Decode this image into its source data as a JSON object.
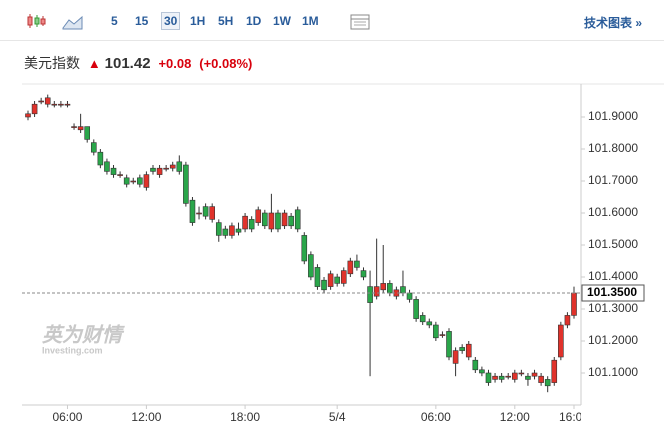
{
  "toolbar": {
    "intervals": [
      "5",
      "15",
      "30",
      "1H",
      "5H",
      "1D",
      "1W",
      "1M"
    ],
    "selected": "30",
    "link": "技术图表 »"
  },
  "header": {
    "name": "美元指数",
    "price": "101.42",
    "change": "+0.08",
    "change_pct": "(+0.08%)"
  },
  "watermark": {
    "brand": "英为财情",
    "site": "Investing.com"
  },
  "chart_data": {
    "type": "candlestick",
    "up_color": "#e0322b",
    "down_color": "#2aa64a",
    "categories": [
      null,
      null,
      null,
      null,
      null,
      null,
      "06:00",
      null,
      null,
      null,
      null,
      null,
      null,
      null,
      null,
      null,
      null,
      null,
      "12:00",
      null,
      null,
      null,
      null,
      null,
      null,
      null,
      null,
      null,
      null,
      null,
      null,
      null,
      null,
      "18:00",
      null,
      null,
      null,
      null,
      null,
      null,
      null,
      null,
      null,
      null,
      null,
      null,
      null,
      "5/4",
      null,
      null,
      null,
      null,
      null,
      null,
      null,
      null,
      null,
      null,
      null,
      null,
      null,
      null,
      "06:00",
      null,
      null,
      null,
      null,
      null,
      null,
      null,
      null,
      null,
      null,
      null,
      "12:00",
      null,
      null,
      null,
      null,
      null,
      null,
      null,
      null,
      "16:00"
    ],
    "open": [
      101.9,
      101.91,
      101.95,
      101.94,
      101.94,
      101.94,
      101.94,
      101.87,
      101.86,
      101.87,
      101.82,
      101.79,
      101.76,
      101.74,
      101.72,
      101.71,
      101.7,
      101.71,
      101.68,
      101.74,
      101.72,
      101.74,
      101.74,
      101.76,
      101.75,
      101.64,
      101.6,
      101.62,
      101.58,
      101.57,
      101.55,
      101.53,
      101.55,
      101.55,
      101.58,
      101.57,
      101.6,
      101.55,
      101.6,
      101.56,
      101.59,
      101.61,
      101.53,
      101.47,
      101.43,
      101.39,
      101.37,
      101.4,
      101.38,
      101.41,
      101.45,
      101.42,
      101.37,
      101.34,
      101.36,
      101.38,
      101.34,
      101.37,
      101.35,
      101.33,
      101.28,
      101.26,
      101.25,
      101.22,
      101.23,
      101.13,
      101.18,
      101.15,
      101.14,
      101.11,
      101.1,
      101.08,
      101.09,
      101.09,
      101.08,
      101.1,
      101.09,
      101.09,
      101.07,
      101.08,
      101.07,
      101.15,
      101.25,
      101.28
    ],
    "high": [
      101.92,
      101.95,
      101.96,
      101.97,
      101.95,
      101.95,
      101.95,
      101.88,
      101.91,
      101.87,
      101.83,
      101.8,
      101.77,
      101.75,
      101.73,
      101.72,
      101.71,
      101.72,
      101.73,
      101.75,
      101.75,
      101.75,
      101.76,
      101.78,
      101.76,
      101.65,
      101.62,
      101.63,
      101.63,
      101.58,
      101.56,
      101.57,
      101.57,
      101.6,
      101.59,
      101.62,
      101.61,
      101.66,
      101.61,
      101.61,
      101.6,
      101.62,
      101.54,
      101.48,
      101.44,
      101.4,
      101.42,
      101.41,
      101.43,
      101.46,
      101.47,
      101.43,
      101.42,
      101.52,
      101.5,
      101.39,
      101.37,
      101.42,
      101.36,
      101.34,
      101.29,
      101.27,
      101.26,
      101.23,
      101.24,
      101.18,
      101.19,
      101.2,
      101.15,
      101.12,
      101.11,
      101.1,
      101.1,
      101.1,
      101.11,
      101.11,
      101.1,
      101.11,
      101.1,
      101.09,
      101.15,
      101.26,
      101.29,
      101.37
    ],
    "low": [
      101.89,
      101.9,
      101.94,
      101.93,
      101.93,
      101.93,
      101.93,
      101.86,
      101.85,
      101.82,
      101.78,
      101.74,
      101.72,
      101.71,
      101.71,
      101.68,
      101.69,
      101.68,
      101.67,
      101.72,
      101.71,
      101.73,
      101.73,
      101.72,
      101.62,
      101.56,
      101.58,
      101.58,
      101.57,
      101.51,
      101.52,
      101.52,
      101.53,
      101.54,
      101.54,
      101.56,
      101.55,
      101.54,
      101.54,
      101.55,
      101.55,
      101.54,
      101.44,
      101.39,
      101.36,
      101.35,
      101.36,
      101.37,
      101.37,
      101.4,
      101.42,
      101.39,
      101.09,
      101.33,
      101.35,
      101.34,
      101.33,
      101.34,
      101.32,
      101.26,
      101.25,
      101.24,
      101.2,
      101.21,
      101.14,
      101.09,
      101.16,
      101.14,
      101.1,
      101.09,
      101.06,
      101.07,
      101.07,
      101.08,
      101.07,
      101.09,
      101.06,
      101.08,
      101.06,
      101.04,
      101.06,
      101.14,
      101.24,
      101.27
    ],
    "close": [
      101.91,
      101.94,
      101.95,
      101.96,
      101.94,
      101.94,
      101.94,
      101.87,
      101.87,
      101.83,
      101.79,
      101.75,
      101.73,
      101.72,
      101.72,
      101.69,
      101.7,
      101.69,
      101.72,
      101.73,
      101.74,
      101.74,
      101.75,
      101.73,
      101.63,
      101.57,
      101.6,
      101.59,
      101.62,
      101.53,
      101.53,
      101.56,
      101.54,
      101.59,
      101.55,
      101.61,
      101.56,
      101.6,
      101.55,
      101.6,
      101.56,
      101.55,
      101.45,
      101.4,
      101.37,
      101.36,
      101.41,
      101.38,
      101.42,
      101.45,
      101.43,
      101.4,
      101.32,
      101.37,
      101.38,
      101.35,
      101.36,
      101.35,
      101.33,
      101.27,
      101.26,
      101.25,
      101.21,
      101.22,
      101.15,
      101.17,
      101.17,
      101.19,
      101.11,
      101.1,
      101.07,
      101.09,
      101.08,
      101.09,
      101.1,
      101.1,
      101.08,
      101.1,
      101.09,
      101.06,
      101.14,
      101.25,
      101.28,
      101.35
    ],
    "ylim": [
      101.0,
      102.0
    ],
    "yticks": [
      {
        "value": 101.1,
        "label": "101.1000"
      },
      {
        "value": 101.2,
        "label": "101.2000"
      },
      {
        "value": 101.3,
        "label": "101.3000"
      },
      {
        "value": 101.4,
        "label": "101.4000"
      },
      {
        "value": 101.5,
        "label": "101.5000"
      },
      {
        "value": 101.6,
        "label": "101.6000"
      },
      {
        "value": 101.7,
        "label": "101.7000"
      },
      {
        "value": 101.8,
        "label": "101.8000"
      },
      {
        "value": 101.9,
        "label": "101.9000"
      }
    ],
    "last_price": {
      "value": 101.35,
      "label": "101.3500"
    },
    "grid": false
  }
}
